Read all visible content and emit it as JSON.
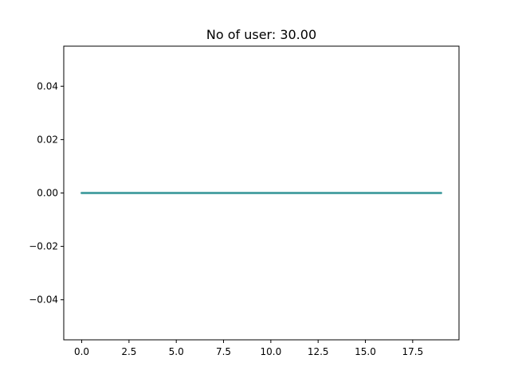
{
  "chart_data": {
    "type": "line",
    "title": "No of user: 30.00",
    "xlabel": "",
    "ylabel": "",
    "xlim": [
      -0.95,
      19.95
    ],
    "ylim": [
      -0.055,
      0.055
    ],
    "x_ticks": [
      0.0,
      2.5,
      5.0,
      7.5,
      10.0,
      12.5,
      15.0,
      17.5
    ],
    "x_tick_labels": [
      "0.0",
      "2.5",
      "5.0",
      "7.5",
      "10.0",
      "12.5",
      "15.0",
      "17.5"
    ],
    "y_ticks": [
      -0.04,
      -0.02,
      0.0,
      0.02,
      0.04
    ],
    "y_tick_labels": [
      "−0.04",
      "−0.02",
      "0.00",
      "0.02",
      "0.04"
    ],
    "grid": false,
    "legend": "none",
    "series": [
      {
        "color": "#4fa3a5",
        "line_width": 3,
        "x": [
          0,
          1,
          2,
          3,
          4,
          5,
          6,
          7,
          8,
          9,
          10,
          11,
          12,
          13,
          14,
          15,
          16,
          17,
          18,
          19
        ],
        "values": [
          0,
          0,
          0,
          0,
          0,
          0,
          0,
          0,
          0,
          0,
          0,
          0,
          0,
          0,
          0,
          0,
          0,
          0,
          0,
          0
        ]
      }
    ]
  }
}
